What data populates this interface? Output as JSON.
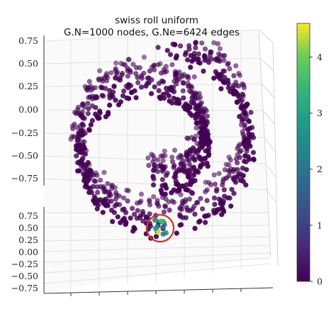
{
  "chart_data": {
    "type": "scatter",
    "title_lines": [
      "swiss roll uniform",
      "G.N=1000 nodes, G.Ne=6424 edges"
    ],
    "projection": "3d",
    "grid": true,
    "y_ticks_upper": [
      "0.75",
      "0.50",
      "0.25",
      "0.00",
      "−0.25",
      "−0.50",
      "−0.75"
    ],
    "z_ticks_lower": [
      "0.75",
      "0.50",
      "0.25",
      "0.00",
      "−0.25",
      "−0.50",
      "−0.75"
    ],
    "colorbar": {
      "min": 0,
      "max": 4.6,
      "ticks": [
        "0",
        "1",
        "2",
        "3",
        "4"
      ],
      "colormap": "viridis"
    },
    "points": {
      "count": 1000,
      "base_value": 0,
      "highlight_cluster_values": [
        4.3,
        4.0,
        3.7,
        2.6,
        2.2,
        1.8,
        4.5,
        3.0,
        1.5,
        2.9,
        3.5,
        2.0
      ]
    },
    "highlight_circle_color": "#d03222"
  },
  "colors": {
    "viridis_low": "#440154",
    "viridis_high": "#fde725",
    "grid": "#e3e3e3"
  }
}
